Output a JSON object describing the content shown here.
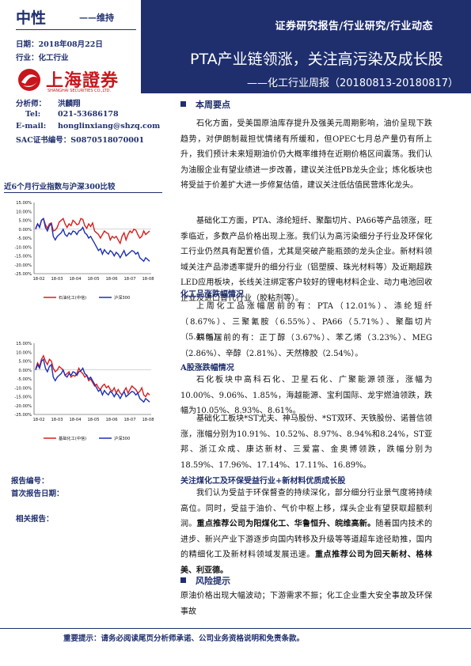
{
  "header": {
    "rating": "中性",
    "rating_note": "——维持",
    "date": "日期：2018年08月22日",
    "industry": "行业：化工行业",
    "report_type": "证券研究报告/行业研究/行业动态",
    "title": "PTA产业链领涨，关注高污染及成长股",
    "subtitle": "——化工行业周报（20180813-20180817）"
  },
  "logo": {
    "name": "上海證券",
    "en": "SHANGHAI SECURITIES CO.,LTD."
  },
  "analyst": {
    "name_label": "分析师：",
    "name": "洪麟翔",
    "tel_label": "Tel:",
    "tel": "021-53686178",
    "email_label": "E-mail:",
    "email": "honglinxiang@shzq.com",
    "sac_label": "SAC证书编号：",
    "sac": "S0870518070001"
  },
  "side": {
    "chart_caption": "近6个月行业指数与沪深300比较",
    "report_no": "报告编号：",
    "first_date": "首次报告日期：",
    "related": "相关报告："
  },
  "chart_data": [
    {
      "type": "line",
      "x_ticks": [
        "18-02",
        "18-03",
        "18-04",
        "18-05",
        "18-06",
        "18-07",
        "18-08"
      ],
      "y_ticks": [
        "15.00%",
        "10.00%",
        "5.00%",
        "0.00%",
        "-5.00%",
        "-10.00%",
        "-15.00%",
        "-20.00%",
        "-25.00%"
      ],
      "ylim": [
        -25,
        15
      ],
      "series": [
        {
          "name": "石油化工(中信)",
          "color": "#d81e1e",
          "values": [
            0.5,
            3,
            1.5,
            5,
            6,
            2.5,
            0.5,
            3,
            3.5,
            -1,
            -0.5,
            1,
            4,
            5,
            6,
            3,
            1,
            3,
            2,
            5,
            4,
            2.5,
            3,
            6,
            5.5,
            2,
            0.5,
            3,
            1.5,
            3.5,
            -1,
            -2,
            -3,
            -5,
            -3,
            -1,
            -2,
            -2.5,
            -6,
            -4,
            -5,
            -4,
            -6,
            -8,
            -4,
            -2,
            -6,
            -3,
            -1,
            -2,
            0,
            -0.5,
            -3,
            -5,
            -4,
            -1,
            -3,
            -2,
            -1
          ]
        },
        {
          "name": "沪深300",
          "color": "#1c2fb5",
          "values": [
            0,
            3,
            1,
            5,
            6,
            1,
            -1,
            2,
            3,
            -4,
            -6,
            -4,
            -3,
            -2,
            0,
            -3,
            -4,
            -2,
            -3,
            -1,
            -1.5,
            -3,
            -1,
            -0.5,
            1,
            -2,
            -3,
            -5,
            -4,
            -6,
            -8,
            -10,
            -12,
            -11,
            -14,
            -11.5,
            -13,
            -14,
            -12,
            -13,
            -15,
            -13,
            -14,
            -16,
            -14,
            -12,
            -15,
            -14,
            -13,
            -12,
            -12.5,
            -14,
            -13,
            -16,
            -17,
            -18,
            -16,
            -17,
            -18
          ]
        }
      ]
    },
    {
      "type": "line",
      "x_ticks": [
        "18-02",
        "18-03",
        "18-04",
        "18-05",
        "18-06",
        "18-07",
        "18-08"
      ],
      "y_ticks": [
        "15.00%",
        "10.00%",
        "5.00%",
        "0.00%",
        "-5.00%",
        "-10.00%",
        "-15.00%",
        "-20.00%",
        "-25.00%"
      ],
      "ylim": [
        -25,
        15
      ],
      "series": [
        {
          "name": "基础化工(中信)",
          "color": "#d81e1e",
          "values": [
            0.5,
            4,
            2,
            6,
            8,
            5,
            3,
            6,
            5,
            1,
            -1,
            0,
            2,
            1,
            0,
            -3,
            -2,
            -1,
            -4,
            -3,
            -3.5,
            -2,
            1,
            -1,
            -2,
            -4,
            -3,
            -6,
            -5,
            -7,
            -9,
            -8,
            -10,
            -11,
            -9,
            -8,
            -10,
            -9,
            -11,
            -12,
            -10,
            -13,
            -11,
            -13,
            -14,
            -12,
            -10,
            -13,
            -11,
            -9,
            -10,
            -11,
            -13,
            -12,
            -10,
            -14,
            -15,
            -13,
            -14
          ]
        },
        {
          "name": "沪深300",
          "color": "#1c2fb5",
          "values": [
            0,
            3,
            1,
            5,
            6,
            1,
            -1,
            2,
            3,
            -4,
            -6,
            -4,
            -3,
            -2,
            0,
            -3,
            -4,
            -2,
            -3,
            -1,
            -1.5,
            -3,
            -1,
            -0.5,
            1,
            -2,
            -3,
            -5,
            -4,
            -6,
            -8,
            -10,
            -12,
            -11,
            -14,
            -11.5,
            -13,
            -14,
            -12,
            -13,
            -15,
            -13,
            -14,
            -16,
            -14,
            -12,
            -15,
            -14,
            -13,
            -12,
            -12.5,
            -14,
            -13,
            -16,
            -17,
            -18,
            -16,
            -17,
            -18
          ]
        }
      ]
    }
  ],
  "body": {
    "sec1_title": "本周要点",
    "p1": "石化方面，受美国原油库存提升及强美元周期影响，油价呈现下跌趋势，对伊朗制裁担忧情绪有所缓和，但OPEC七月总产量仍有所上升，我们预计未来短期油价仍大概率维持在近期价格区间震荡。我们认为油服企业有望业绩进一步改善，建议关注低PB龙头企业；炼化板块也将受益于价差扩大进一步修复估值，建议关注低估值民营炼化龙头。",
    "p2": "基础化工方面，PTA、涤纶短纤、聚酯切片、PA66等产品领涨，旺季临近，多数产品价格出现上涨。我们认为高污染细分子行业及环保化工行业仍然具有配置价值，尤其是突破产能瓶颈的龙头企业。新材料领域关注产品渗透率提升的细分行业（铝塑膜、珠光材料等）及近期超跌LED应用板块，长线关注绑定客户较好的锂电材料企业、动力电池回收企业及进口替代行业（胶粘剂等）。",
    "h_price": "化工品涨跌幅情况",
    "p3": "上周化工品涨幅居前的有：PTA（12.01%）、涤纶短纤（8.67%）、三聚氰胺（6.55%）、PA66（5.71%）、聚酯切片（5.41%）。",
    "p4": "跌幅居前的有：正丁醇（3.67%）、苯乙烯（3.23%）、MEG（2.86%）、辛醇（2.81%）、天然橡胶（2.54%）。",
    "h_ashare": "A股涨跌幅情况",
    "p5": "石化板块中高科石化、卫星石化、广聚能源领涨，涨幅为10.00%、9.06%、1.85%，海越能源、宝利国际、龙宇燃油领跌，跌幅为10.05%、8.93%、8.61%。",
    "p6": "基础化工板块*ST尤夫、神马股份、*ST双环、天铁股份、诺普信领涨，涨幅分别为10.91%、10.52%、8.97%、8.94%和8.24%，ST亚邦、浙江众成、康达新材、三爱富、金奥博领跌，跌幅分别为18.59%、17.96%、17.14%、17.11%、16.89%。",
    "h_env": "关注煤化工及环保受益行业+新材料优质成长股",
    "p7a": "我们认为受益于环保督查的持续深化，部分细分行业景气度将持续高位。同时，受益于油价、气价中枢上移，煤头企业有望获取超额利润。",
    "p7b": "重点推荐公司为阳煤化工、华鲁恒升、皖维高新。",
    "p7c": "随着国内技术的进步、新兴产业下游逐步向国内转移及升级等等道超车途径助推，国内的精细化工及新材料领域发展迅速。",
    "p7d": "重点推荐公司为回天新材、格林美、利亚德。",
    "sec2_title": "风险提示",
    "p8": "原油价格出现大幅波动；下游需求不振；化工企业重大安全事故及环保事故"
  },
  "footer": {
    "notice": "重要提示：请务必阅读尾页分析师承诺、公司业务资格说明和免责条款。"
  }
}
